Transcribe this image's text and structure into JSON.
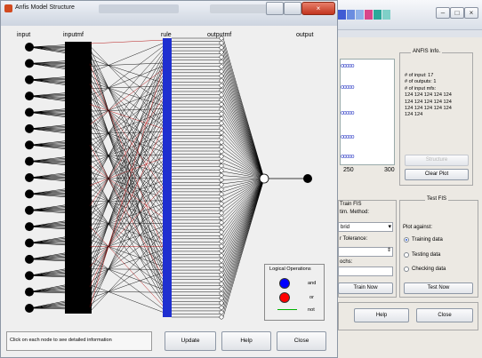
{
  "structure_window": {
    "title": "Anfis Model Structure",
    "layers": {
      "input": "input",
      "inputmf": "inputmf",
      "rule": "rule",
      "outputmf": "outputmf",
      "output": "output"
    },
    "logical_operations": {
      "title": "Logical Operations",
      "items": [
        {
          "label": "and",
          "color": "#0000ff"
        },
        {
          "label": "or",
          "color": "#ff0000"
        },
        {
          "label": "not",
          "color": "#00b000"
        }
      ]
    },
    "status_text": "Click on each node to see detailed information",
    "buttons": {
      "update": "Update",
      "help": "Help",
      "close": "Close"
    },
    "node_colors": {
      "input_node": "#000000",
      "rule_layer": "#1f2fd0",
      "output_node": "#000000",
      "sum_node": "#ffffff"
    }
  },
  "editor_window": {
    "plot_axis": {
      "left": "250",
      "right": "300"
    },
    "anfis_info": {
      "title": "ANFIS Info.",
      "text": "# of input: 17\n# of outputs: 1\n# of input mfs:\n124  124  124  124  124\n124  124  124  124  124\n124  124  124  124  124\n124  124",
      "structure_button": "Structure",
      "clear_plot_button": "Clear Plot"
    },
    "train_fis": {
      "title": "Train FIS",
      "method_label": "tim. Method:",
      "method_value": "brid",
      "tolerance_label": "r Tolerance:",
      "epochs_label": "ochs:",
      "train_button": "Train Now"
    },
    "test_fis": {
      "title": "Test FIS",
      "plot_against": "Plot against:",
      "options": [
        "Training data",
        "Testing data",
        "Checking data"
      ],
      "selected": "Training data",
      "test_button": "Test Now"
    },
    "bottom_buttons": {
      "help": "Help",
      "close": "Close"
    }
  }
}
